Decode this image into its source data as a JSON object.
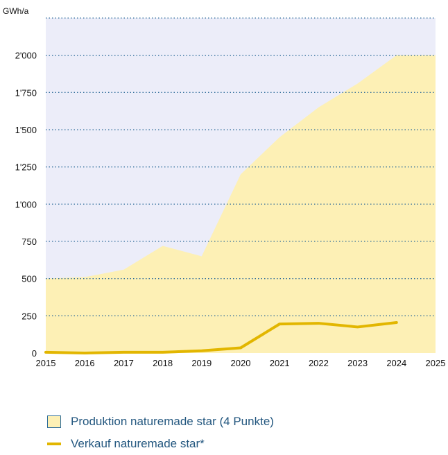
{
  "chart_data": {
    "type": "area",
    "unit_label": "GWh/a",
    "x": [
      2015,
      2016,
      2017,
      2018,
      2019,
      2020,
      2021,
      2022,
      2023,
      2024,
      2025
    ],
    "xlim": [
      2015,
      2025
    ],
    "ylim": [
      0,
      2250
    ],
    "yticks": [
      0,
      250,
      500,
      750,
      1000,
      1250,
      1500,
      1750,
      2000
    ],
    "ytick_labels": [
      "0",
      "250",
      "500",
      "750",
      "1'000",
      "1'250",
      "1'500",
      "1'750",
      "2'000"
    ],
    "series": [
      {
        "name": "Produktion naturemade star (4 Punkte)",
        "kind": "area",
        "color": "#fdf0b5",
        "x": [
          2015,
          2016,
          2017,
          2018,
          2019,
          2020,
          2021,
          2022,
          2023,
          2024,
          2025
        ],
        "values": [
          500,
          510,
          560,
          720,
          650,
          1200,
          1450,
          1650,
          1810,
          2000,
          2000
        ]
      },
      {
        "name": "Verkauf naturemade star*",
        "kind": "line",
        "color": "#e2b600",
        "x": [
          2015,
          2016,
          2017,
          2018,
          2019,
          2020,
          2021,
          2022,
          2023,
          2024
        ],
        "values": [
          5,
          0,
          5,
          5,
          15,
          35,
          195,
          200,
          175,
          205
        ]
      }
    ],
    "background_color": "#ecedf9",
    "grid": "dotted horizontal",
    "legend_position": "bottom-left"
  },
  "legend": {
    "items": [
      {
        "label": "Produktion naturemade star (4 Punkte)",
        "swatch_fill": "#fdf0b5",
        "swatch_border": "#2f6d9a"
      },
      {
        "label": "Verkauf naturemade star*",
        "swatch_fill": "#e2b600"
      }
    ]
  }
}
